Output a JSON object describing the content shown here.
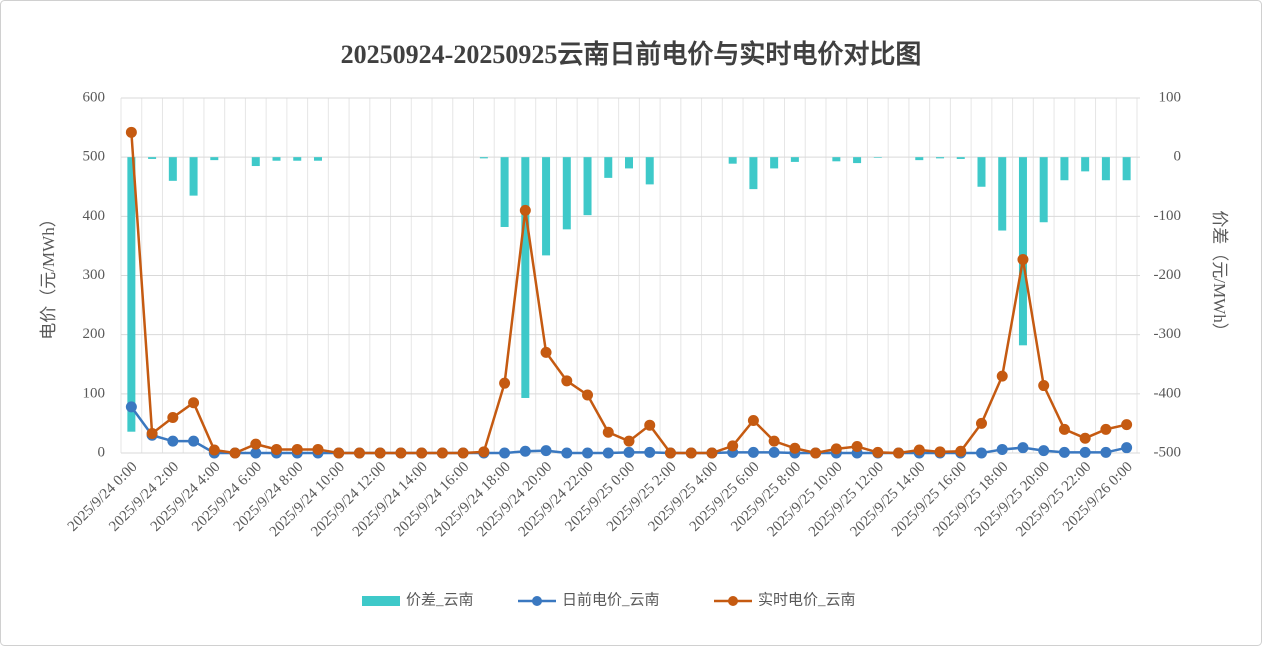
{
  "chart_data": {
    "type": "combo",
    "title": "20250924-20250925云南日前电价与实时电价对比图",
    "y_label": "电价（元/MWh）",
    "y2_label": "价差（元/MWh）",
    "categories": [
      "2025/9/24 0:00",
      null,
      "2025/9/24 2:00",
      null,
      "2025/9/24 4:00",
      null,
      "2025/9/24 6:00",
      null,
      "2025/9/24 8:00",
      null,
      "2025/9/24 10:00",
      null,
      "2025/9/24 12:00",
      null,
      "2025/9/24 14:00",
      null,
      "2025/9/24 16:00",
      null,
      "2025/9/24 18:00",
      null,
      "2025/9/24 20:00",
      null,
      "2025/9/24 22:00",
      null,
      "2025/9/25 0:00",
      null,
      "2025/9/25 2:00",
      null,
      "2025/9/25 4:00",
      null,
      "2025/9/25 6:00",
      null,
      "2025/9/25 8:00",
      null,
      "2025/9/25 10:00",
      null,
      "2025/9/25 12:00",
      null,
      "2025/9/25 14:00",
      null,
      "2025/9/25 16:00",
      null,
      "2025/9/25 18:00",
      null,
      "2025/9/25 20:00",
      null,
      "2025/9/25 22:00",
      null,
      "2025/9/26 0:00"
    ],
    "series": [
      {
        "name": "价差_云南",
        "type": "bar",
        "axis": "y2",
        "color": "#3ec9c9",
        "values": [
          -464,
          -3,
          -40,
          -65,
          -5,
          0,
          -15,
          -6,
          -6,
          -6,
          0,
          0,
          0,
          0,
          0,
          0,
          0,
          -2,
          -118,
          -407,
          -166,
          -122,
          -98,
          -35,
          -19,
          -46,
          0,
          0,
          0,
          -11,
          -54,
          -19,
          -8,
          0,
          -7,
          -10,
          -1,
          0,
          -5,
          -2,
          -3,
          -50,
          -124,
          -318,
          -110,
          -39,
          -24,
          -39,
          -39
        ]
      },
      {
        "name": "日前电价_云南",
        "type": "line",
        "color": "#3a78c0",
        "values": [
          78,
          30,
          20,
          20,
          0,
          0,
          0,
          0,
          0,
          0,
          0,
          0,
          0,
          0,
          0,
          0,
          0,
          0,
          0,
          3,
          4,
          0,
          0,
          0,
          1,
          1,
          0,
          0,
          0,
          1,
          1,
          1,
          0,
          0,
          0,
          0,
          0,
          0,
          0,
          0,
          0,
          0,
          6,
          9,
          4,
          1,
          1,
          1,
          9
        ]
      },
      {
        "name": "实时电价_云南",
        "type": "line",
        "color": "#c55a11",
        "values": [
          542,
          33,
          60,
          85,
          5,
          0,
          15,
          6,
          6,
          6,
          0,
          0,
          0,
          0,
          0,
          0,
          0,
          2,
          118,
          410,
          170,
          122,
          98,
          35,
          20,
          47,
          0,
          0,
          0,
          12,
          55,
          20,
          8,
          0,
          7,
          11,
          1,
          0,
          5,
          2,
          3,
          50,
          130,
          327,
          114,
          40,
          25,
          40,
          48
        ]
      }
    ],
    "ylim": [
      0,
      600
    ],
    "yticks": [
      0,
      100,
      200,
      300,
      400,
      500,
      600
    ],
    "y2lim": [
      -500,
      100
    ],
    "y2ticks": [
      -500,
      -400,
      -300,
      -200,
      -100,
      0,
      100
    ],
    "grid": true
  }
}
